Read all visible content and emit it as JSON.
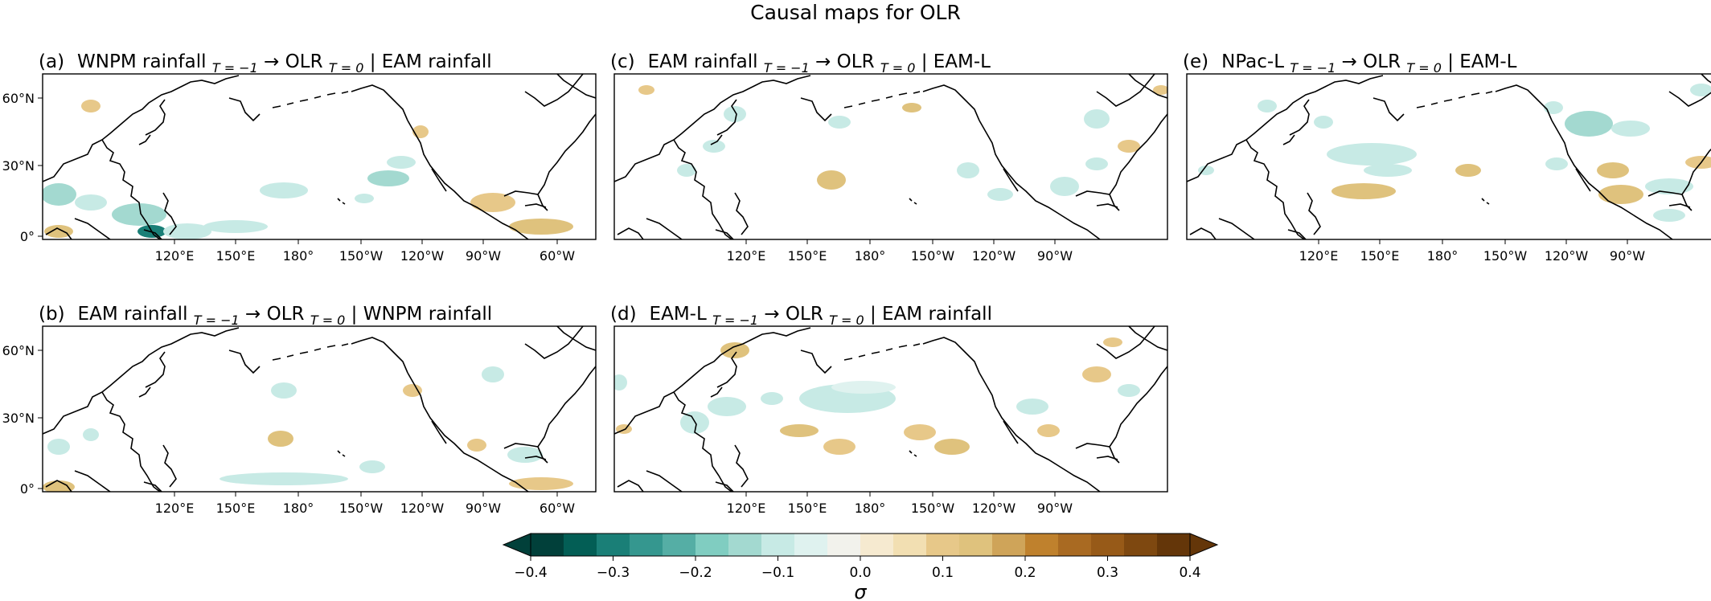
{
  "figure": {
    "title": "Causal maps for OLR"
  },
  "panels": [
    {
      "letter": "(a)",
      "parts": [
        "WNPM rainfall ",
        "T = −1",
        " → OLR ",
        "T = 0",
        " | EAM rainfall"
      ],
      "lat_labels": [
        "60°N",
        "30°N",
        "0°"
      ],
      "lon_labels": [
        "120°E",
        "150°E",
        "180°",
        "150°W",
        "120°W",
        "90°W",
        "60°W"
      ]
    },
    {
      "letter": "(b)",
      "parts": [
        "EAM rainfall ",
        "T = −1",
        " → OLR ",
        "T = 0",
        " | WNPM rainfall"
      ],
      "lat_labels": [
        "60°N",
        "30°N",
        "0°"
      ],
      "lon_labels": [
        "120°E",
        "150°E",
        "180°",
        "150°W",
        "120°W",
        "90°W",
        "60°W"
      ]
    },
    {
      "letter": "(c)",
      "parts": [
        "EAM rainfall ",
        "T = −1",
        " → OLR ",
        "T = 0",
        " | EAM-L"
      ],
      "lat_labels": [],
      "lon_labels": [
        "120°E",
        "150°E",
        "180°",
        "150°W",
        "120°W",
        "90°W"
      ]
    },
    {
      "letter": "(d)",
      "parts": [
        "EAM-L ",
        "T = −1",
        " → OLR ",
        "T = 0",
        " | EAM rainfall"
      ],
      "lat_labels": [],
      "lon_labels": [
        "120°E",
        "150°E",
        "180°",
        "150°W",
        "120°W",
        "90°W"
      ]
    },
    {
      "letter": "(e)",
      "parts": [
        "NPac-L ",
        "T = −1",
        " → OLR ",
        "T = 0",
        " | EAM-L"
      ],
      "lat_labels": [],
      "lon_labels": [
        "120°E",
        "150°E",
        "180°",
        "150°W",
        "120°W",
        "90°W"
      ]
    }
  ],
  "colorbar": {
    "label": "σ",
    "tick_labels": [
      "−0.4",
      "−0.3",
      "−0.2",
      "−0.1",
      "0.0",
      "0.1",
      "0.2",
      "0.3",
      "0.4"
    ],
    "range": [
      -0.4,
      0.4
    ],
    "colors": [
      "#01403a",
      "#035e55",
      "#1a7f77",
      "#35978f",
      "#55ae a5",
      "#80cdc1",
      "#a3d9d0",
      "#c7eae5",
      "#dff2ef",
      "#f2f2ec",
      "#f6ead0",
      "#f2dfb2",
      "#e7c889",
      "#dfc27d",
      "#cfa459",
      "#bf812d",
      "#a96a22",
      "#975a18",
      "#7e4810",
      "#643609"
    ]
  },
  "colors": {
    "coast": "#000000",
    "frame": "#000000",
    "ocean": "#ffffff"
  }
}
